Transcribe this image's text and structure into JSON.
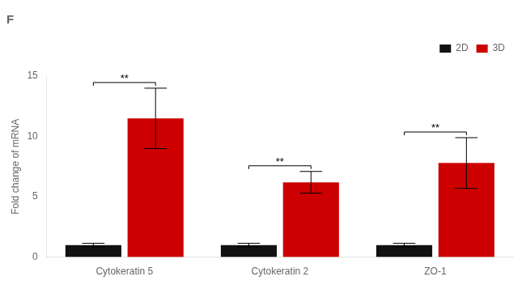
{
  "chart_data": {
    "type": "bar",
    "title": "F",
    "categories": [
      "Cytokeratin 5",
      "Cytokeratin 2",
      "ZO-1"
    ],
    "series": [
      {
        "name": "2D",
        "color": "#111111",
        "values": [
          1.0,
          1.0,
          1.0
        ],
        "errors": [
          0.15,
          0.15,
          0.15
        ]
      },
      {
        "name": "3D",
        "color": "#cc0000",
        "values": [
          11.5,
          6.2,
          7.8
        ],
        "errors": [
          2.5,
          0.9,
          2.1
        ]
      }
    ],
    "ylabel": "Fold change of mRNA",
    "ylim": [
      0,
      15
    ],
    "yticks": [
      0,
      5,
      10,
      15
    ],
    "annotations": [
      {
        "text": "**",
        "category": "Cytokeratin 5"
      },
      {
        "text": "**",
        "category": "Cytokeratin 2"
      },
      {
        "text": "**",
        "category": "ZO-1"
      }
    ],
    "grid": false,
    "legend": "upper right"
  }
}
